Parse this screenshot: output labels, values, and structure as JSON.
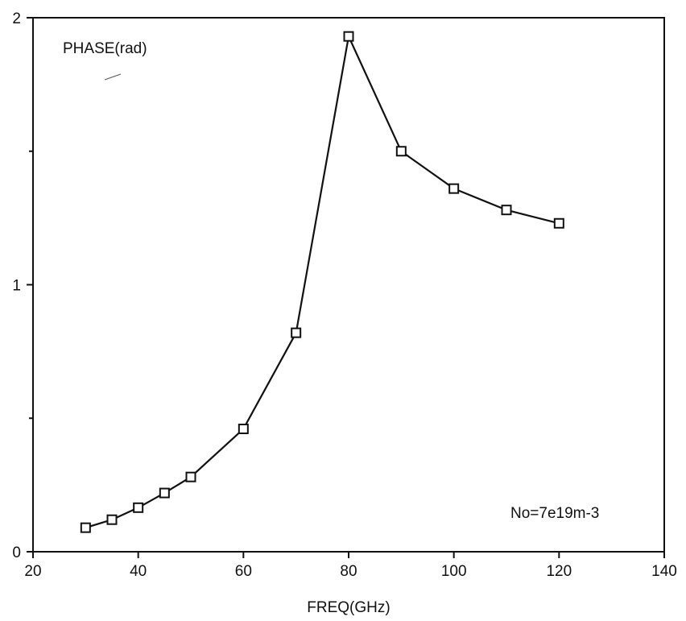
{
  "chart_data": {
    "type": "line",
    "xlabel": "FREQ(GHz)",
    "ylabel": "PHASE(rad)",
    "annotation": "No=7e19m-3",
    "xlim": [
      20,
      140
    ],
    "ylim": [
      0,
      2
    ],
    "x_ticks": [
      20,
      40,
      60,
      80,
      100,
      120,
      140
    ],
    "y_ticks": [
      0,
      1,
      2
    ],
    "y_minor_ticks": [
      0.5,
      1.5
    ],
    "grid": false,
    "marker": "open-square",
    "series": [
      {
        "x": [
          30,
          35,
          40,
          45,
          50,
          60,
          70,
          80,
          90,
          100,
          110,
          120
        ],
        "y": [
          0.09,
          0.12,
          0.165,
          0.22,
          0.28,
          0.46,
          0.82,
          1.93,
          1.5,
          1.36,
          1.28,
          1.23
        ]
      }
    ]
  }
}
